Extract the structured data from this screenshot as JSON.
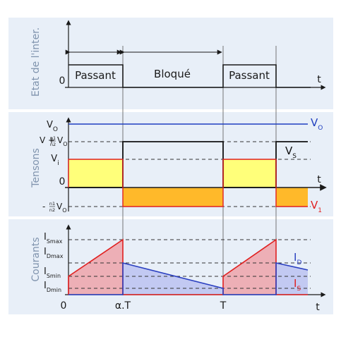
{
  "colors": {
    "panel_bg": "#e8eff8",
    "divider": "#ffffff",
    "axis": "#1a1a1a",
    "state_line": "#1a1a1a",
    "vo_line": "#1f3fbf",
    "vs_line": "#111111",
    "vi_line": "#e02020",
    "vi_fill": "#ffff7a",
    "v1_fill": "#ffb92a",
    "is_line": "#e02020",
    "is_fill": "#ef9aa0",
    "id_line": "#2a3fc0",
    "id_fill": "#b8bff0",
    "dash": "#333333",
    "guide": "#555555",
    "side_label": "#7f93ad"
  },
  "panel1": {
    "side_label": "Etat de l'inter.",
    "zero_label": "0",
    "t_label": "t",
    "state_passant_1": "Passant",
    "state_bloque": "Bloqué",
    "state_passant_2": "Passant"
  },
  "panel2": {
    "side_label": "Tensons",
    "vo_main": "V",
    "vo_sub": "O",
    "vmax_prefix": "V + ",
    "frac_num": "n1",
    "frac_den": "n2",
    "vmax_v": "V",
    "vmax_sub": "O",
    "vi_main": "V",
    "vi_sub": "i",
    "zero_label": "0",
    "vmin_prefix": "- ",
    "vmin_v": "V",
    "vmin_sub": "O",
    "t_label": "t",
    "legend_vo_main": "V",
    "legend_vo_sub": "O",
    "legend_vs_main": "V",
    "legend_vs_sub": "S",
    "legend_v1_main": "V",
    "legend_v1_sub": "1"
  },
  "panel3": {
    "side_label": "Courants",
    "ismax_main": "I",
    "ismax_sub": "Smax",
    "idmax_main": "I",
    "idmax_sub": "Dmax",
    "ismin_main": "I",
    "ismin_sub": "Smin",
    "idmin_main": "I",
    "idmin_sub": "Dmin",
    "x0_label": "0",
    "xat_label": "α.T",
    "xT_label": "T",
    "t_label": "t",
    "legend_id_main": "I",
    "legend_id_sub": "D",
    "legend_is_main": "I",
    "legend_is_sub": "S"
  }
}
